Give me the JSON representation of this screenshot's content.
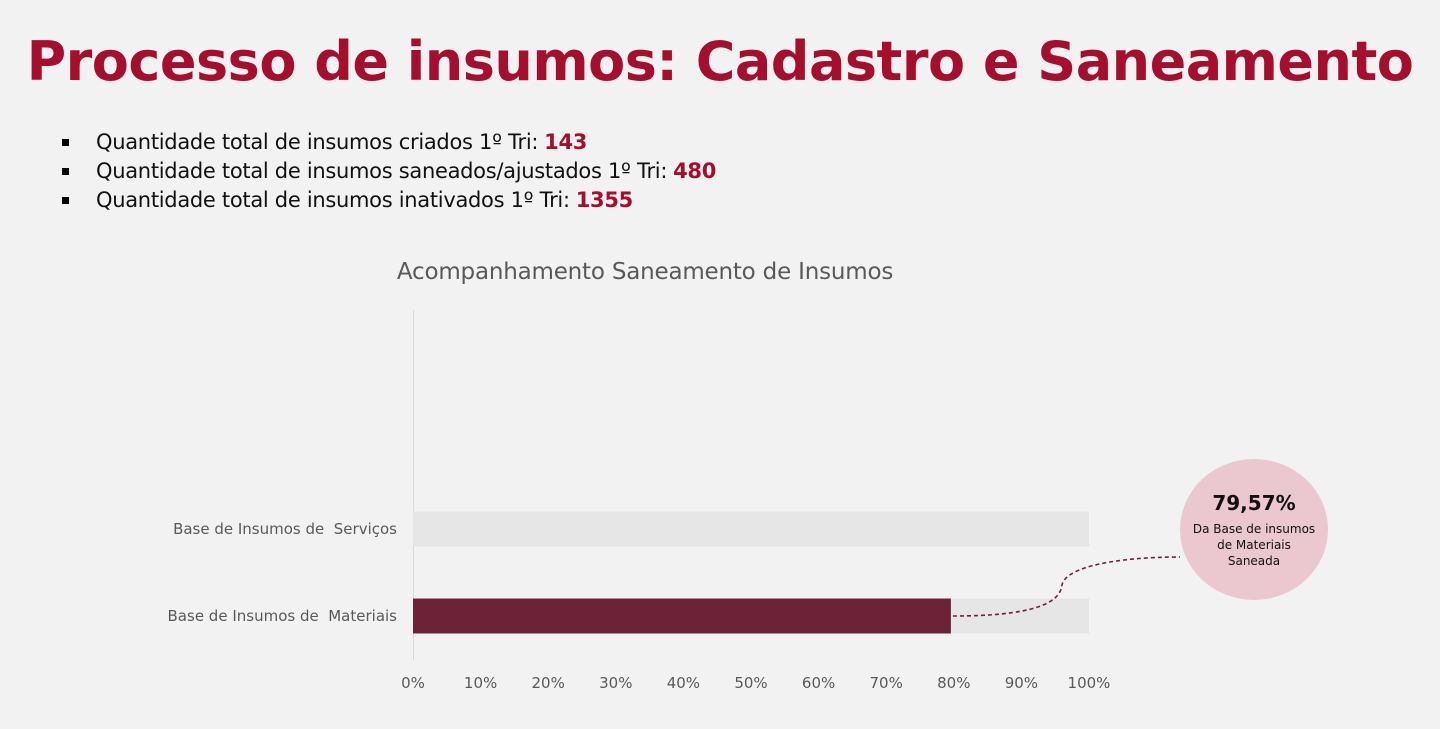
{
  "title": "Processo de insumos: Cadastro e Saneamento",
  "bullets": [
    {
      "text": "Quantidade total de insumos criados 1º Tri:",
      "value": "143"
    },
    {
      "text": "Quantidade total de insumos saneados/ajustados 1º Tri:",
      "value": "480"
    },
    {
      "text": "Quantidade total de insumos inativados 1º Tri:",
      "value": "1355"
    }
  ],
  "colors": {
    "accent": "#a50f2d",
    "bar_fill": "#6e2237",
    "bar_track": "#e6e6e6",
    "callout_bg": "#ebc7d0"
  },
  "chart_data": {
    "type": "bar",
    "orientation": "horizontal",
    "title": "Acompanhamento Saneamento de Insumos",
    "categories": [
      "Base de Insumos de  Serviços",
      "Base de Insumos de  Materiais"
    ],
    "values": [
      0,
      79.57
    ],
    "track_max": 100,
    "xlim": [
      0,
      100
    ],
    "xticks": [
      "0%",
      "10%",
      "20%",
      "30%",
      "40%",
      "50%",
      "60%",
      "70%",
      "80%",
      "90%",
      "100%"
    ],
    "grid": false,
    "legend": "none",
    "annotation": {
      "value": "79,57%",
      "text": "Da Base de insumos de Materiais Saneada"
    }
  }
}
